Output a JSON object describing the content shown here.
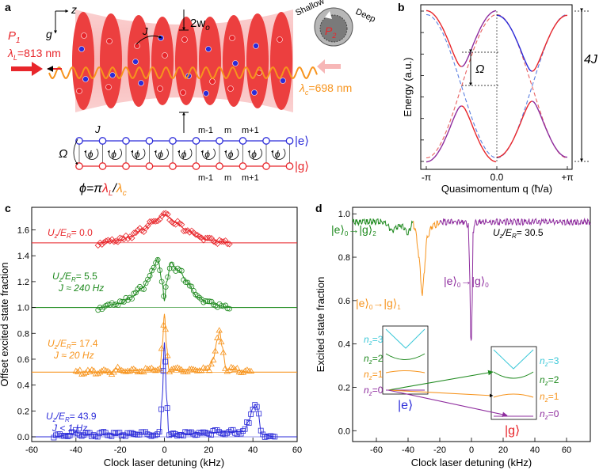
{
  "panel_labels": {
    "a": "a",
    "b": "b",
    "c": "c",
    "d": "d"
  },
  "colors": {
    "red": "#e8262b",
    "green": "#1f8a1f",
    "orange": "#f7941d",
    "blue": "#2b2bd9",
    "purple": "#8e2c9e",
    "cyan": "#3cc8d8",
    "pink_beam": "#f7b7b7",
    "light_red": "#f15a5a",
    "dashed_red": "#e86060",
    "dashed_blue": "#5b7fe0"
  },
  "panel_a": {
    "axis_z": "z",
    "axis_g": "g",
    "beam_width": "2w",
    "beam_width_sub": "o",
    "tunneling": "J",
    "laser_P1": "P",
    "laser_P1_sub": "1",
    "lambda_L": "λ",
    "lambda_L_sub": "L",
    "lambda_L_value": "=813 nm",
    "lambda_c": "λ",
    "lambda_c_sub": "c",
    "lambda_c_value": "=698 nm",
    "shallow": "Shallow",
    "deep": "Deep",
    "laser_P2": "P",
    "laser_P2_sub": "2",
    "ket_e": "|e⟩",
    "ket_g": "|g⟩",
    "omega": "Ω",
    "phi": "ϕ",
    "site_m_minus": "m-1",
    "site_m": "m",
    "site_m_plus": "m+1",
    "phi_eq": "ϕ=π",
    "phi_eq_L": "λ",
    "phi_eq_L_sub": "L",
    "phi_eq_slash": "/",
    "phi_eq_c": "λ",
    "phi_eq_c_sub": "c"
  },
  "chart_data": [
    {
      "panel": "b",
      "type": "line",
      "title": "",
      "xlabel": "Quasimomentum q (ħ/a)",
      "ylabel": "Energy (a.u.)",
      "xticks": [
        "-π",
        "0.0",
        "+π"
      ],
      "xlim": [
        -3.1416,
        3.1416
      ],
      "annotations": [
        "Ω",
        "4J"
      ],
      "series": [
        {
          "name": "upper band (solid)",
          "style": "solid",
          "colors": [
            "red",
            "blue"
          ],
          "x": [
            -3.14,
            -2.5,
            -2.0,
            -1.57,
            -1.0,
            -0.5,
            0.0,
            0.5,
            1.0,
            1.57,
            2.0,
            2.5,
            3.14
          ],
          "y": [
            2.0,
            1.6,
            0.84,
            0.5,
            0.65,
            1.6,
            2.0,
            1.6,
            0.85,
            0.4,
            0.85,
            1.6,
            2.0
          ]
        },
        {
          "name": "lower band (solid)",
          "style": "solid",
          "colors": [
            "purple",
            "red"
          ],
          "x": [
            -3.14,
            -2.5,
            -2.0,
            -1.57,
            -1.0,
            -0.5,
            0.0,
            0.5,
            1.0,
            1.57,
            2.0,
            2.5,
            3.14
          ],
          "y": [
            -2.0,
            -1.6,
            -0.85,
            -0.4,
            -0.85,
            -1.6,
            -2.0,
            -1.6,
            -0.65,
            -0.5,
            -0.84,
            -1.6,
            -2.0
          ]
        },
        {
          "name": "uncoupled |g⟩ (dashed)",
          "style": "dashed",
          "color": "dashed_red",
          "x": [
            -3.14,
            -2.0,
            -1.0,
            0.0,
            1.0,
            2.0,
            3.14
          ],
          "y": [
            2.0,
            0.83,
            -1.08,
            -2.0,
            -1.08,
            0.83,
            2.0
          ]
        },
        {
          "name": "uncoupled |e⟩ (dashed)",
          "style": "dashed",
          "color": "dashed_blue",
          "x": [
            -3.14,
            -2.0,
            -1.0,
            0.0,
            1.0,
            2.0,
            3.14
          ],
          "y": [
            -2.0,
            -0.83,
            1.08,
            2.0,
            1.08,
            -0.83,
            -2.0
          ]
        }
      ]
    },
    {
      "panel": "c",
      "type": "line",
      "xlabel": "Clock laser detuning (kHz)",
      "ylabel": "Offset excited state fraction",
      "xlim": [
        -60,
        60
      ],
      "ylim": [
        0.0,
        1.75
      ],
      "xticks": [
        -60,
        -40,
        -20,
        0,
        20,
        40,
        60
      ],
      "yticks": [
        0.0,
        0.2,
        0.4,
        0.6,
        0.8,
        1.0,
        1.2,
        1.4,
        1.6
      ],
      "series": [
        {
          "name": "U/E = 0.0",
          "label": "U",
          "label_sub": "z",
          "label_mid": "/E",
          "label_sub2": "R",
          "label_value": "= 0.0",
          "extra": "",
          "color": "red",
          "marker": "diamond",
          "offset": 1.5,
          "x": [
            -30,
            -25,
            -20,
            -15,
            -10,
            -5,
            0,
            5,
            10,
            15,
            20,
            25,
            30
          ],
          "y": [
            1.5,
            1.51,
            1.52,
            1.55,
            1.6,
            1.66,
            1.72,
            1.66,
            1.6,
            1.55,
            1.52,
            1.51,
            1.5
          ]
        },
        {
          "name": "U/E = 5.5",
          "label": "U",
          "label_sub": "z",
          "label_mid": "/E",
          "label_sub2": "R",
          "label_value": "= 5.5",
          "extra": "J ≈ 240 Hz",
          "color": "green",
          "marker": "circle",
          "offset": 1.0,
          "x": [
            -30,
            -20,
            -15,
            -10,
            -7,
            -5,
            -3,
            -1,
            0,
            1,
            3,
            5,
            7,
            10,
            15,
            20,
            30
          ],
          "y": [
            1.0,
            1.03,
            1.08,
            1.15,
            1.22,
            1.3,
            1.38,
            1.2,
            1.05,
            1.2,
            1.35,
            1.3,
            1.28,
            1.2,
            1.08,
            1.03,
            1.0
          ]
        },
        {
          "name": "U/E = 17.4",
          "label": "U",
          "label_sub": "z",
          "label_mid": "/E",
          "label_sub2": "R",
          "label_value": "= 17.4",
          "extra": "J ≈ 20 Hz",
          "color": "orange",
          "marker": "triangle",
          "offset": 0.5,
          "x": [
            -40,
            -24,
            -22,
            -20,
            -2,
            -1,
            0,
            1,
            2,
            20,
            22,
            24,
            25,
            26,
            28,
            40
          ],
          "y": [
            0.5,
            0.5,
            0.53,
            0.51,
            0.52,
            0.7,
            0.95,
            0.7,
            0.52,
            0.52,
            0.6,
            0.75,
            0.82,
            0.7,
            0.52,
            0.5
          ]
        },
        {
          "name": "U/E = 43.9",
          "label": "U",
          "label_sub": "z",
          "label_mid": "/E",
          "label_sub2": "R",
          "label_value": "= 43.9",
          "extra": "J < 1 Hz",
          "color": "blue",
          "marker": "square",
          "offset": 0.0,
          "x": [
            -50,
            -42,
            -40,
            -38,
            -2,
            -1,
            0,
            1,
            2,
            36,
            38,
            40,
            41,
            42,
            44,
            50
          ],
          "y": [
            0.0,
            0.02,
            0.04,
            0.02,
            0.02,
            0.3,
            0.73,
            0.3,
            0.02,
            0.04,
            0.12,
            0.22,
            0.25,
            0.22,
            0.02,
            0.0
          ]
        }
      ]
    },
    {
      "panel": "d",
      "type": "line",
      "xlabel": "Clock laser detuning (kHz)",
      "ylabel": "Excited state fraction",
      "xlim": [
        -75,
        75
      ],
      "ylim": [
        -0.05,
        1.03
      ],
      "xticks": [
        -60,
        -40,
        -20,
        0,
        20,
        40,
        60
      ],
      "yticks": [
        0.0,
        0.2,
        0.4,
        0.6,
        0.8,
        1.0
      ],
      "annotation_U": "U",
      "annotation_U_sub": "z",
      "annotation_U_mid": "/E",
      "annotation_U_sub2": "R",
      "annotation_U_value": "= 30.5",
      "labels": {
        "e0_g2": [
          "|e⟩",
          "0",
          "→|g⟩",
          "2"
        ],
        "e0_g1": [
          "|e⟩",
          "0",
          "→|g⟩",
          "1"
        ],
        "e0_g0": [
          "|e⟩",
          "0",
          "→|g⟩",
          "0"
        ]
      },
      "series": [
        {
          "name": "|e⟩0→|g⟩2",
          "color": "green",
          "x": [
            -75,
            -55,
            -50,
            -45,
            -40,
            -37
          ],
          "y": [
            0.97,
            0.97,
            0.93,
            0.96,
            0.92,
            0.97
          ]
        },
        {
          "name": "|e⟩0→|g⟩1",
          "color": "orange",
          "x": [
            -37,
            -35,
            -33,
            -31,
            -30,
            -29,
            -28,
            -25,
            -22,
            -20
          ],
          "y": [
            0.97,
            0.92,
            0.8,
            0.62,
            0.72,
            0.82,
            0.9,
            0.95,
            0.96,
            0.97
          ]
        },
        {
          "name": "|e⟩0→|g⟩0",
          "color": "purple",
          "x": [
            -20,
            -5,
            -2,
            -1,
            -0.5,
            0,
            0.5,
            1,
            2,
            5,
            75
          ],
          "y": [
            0.97,
            0.97,
            0.95,
            0.7,
            0.45,
            0.43,
            0.6,
            0.92,
            0.97,
            0.97,
            0.97
          ]
        }
      ],
      "inset_levels": {
        "n3": [
          "n",
          "z",
          "=3"
        ],
        "n2": [
          "n",
          "z",
          "=2"
        ],
        "n1": [
          "n",
          "z",
          "=1"
        ],
        "n0": [
          "n",
          "z",
          "=0"
        ],
        "ket_e": "|e⟩",
        "ket_g": "|g⟩"
      }
    }
  ]
}
